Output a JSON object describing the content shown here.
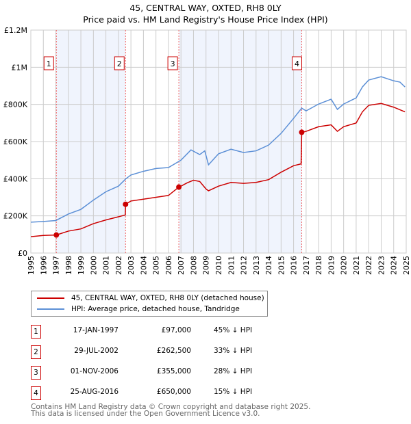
{
  "chart_data": {
    "type": "line",
    "title": "45, CENTRAL WAY, OXTED, RH8 0LY",
    "subtitle": "Price paid vs. HM Land Registry's House Price Index (HPI)",
    "xlim": [
      1995,
      2025
    ],
    "ylim": [
      0,
      1200000
    ],
    "yticks": [
      {
        "v": 0,
        "label": "£0"
      },
      {
        "v": 200000,
        "label": "£200K"
      },
      {
        "v": 400000,
        "label": "£400K"
      },
      {
        "v": 600000,
        "label": "£600K"
      },
      {
        "v": 800000,
        "label": "£800K"
      },
      {
        "v": 1000000,
        "label": "£1M"
      },
      {
        "v": 1200000,
        "label": "£1.2M"
      }
    ],
    "xticks": [
      "1995",
      "1996",
      "1997",
      "1998",
      "1999",
      "2000",
      "2001",
      "2002",
      "2003",
      "2004",
      "2005",
      "2006",
      "2007",
      "2008",
      "2009",
      "2010",
      "2011",
      "2012",
      "2013",
      "2014",
      "2015",
      "2016",
      "2017",
      "2018",
      "2019",
      "2020",
      "2021",
      "2022",
      "2023",
      "2024",
      "2025"
    ],
    "grid": true,
    "series": [
      {
        "name": "45, CENTRAL WAY, OXTED, RH8 0LY (detached house)",
        "color": "#cc0000",
        "x": [
          1995,
          1996,
          1997.04,
          1998,
          1999,
          2000,
          2001,
          2002,
          2002.55,
          2002.57,
          2003,
          2004,
          2005,
          2006,
          2006.83,
          2007,
          2007.5,
          2008,
          2008.5,
          2009,
          2009.2,
          2010,
          2011,
          2012,
          2013,
          2014,
          2015,
          2016,
          2016.6,
          2016.65,
          2017,
          2018,
          2019,
          2019.5,
          2020,
          2021,
          2021.5,
          2022,
          2023,
          2024,
          2024.9
        ],
        "y": [
          88000,
          95000,
          97000,
          118000,
          130000,
          158000,
          178000,
          195000,
          205000,
          262500,
          280000,
          290000,
          300000,
          310000,
          355000,
          360000,
          378000,
          392000,
          385000,
          345000,
          335000,
          360000,
          380000,
          375000,
          380000,
          395000,
          435000,
          470000,
          480000,
          650000,
          655000,
          680000,
          690000,
          655000,
          680000,
          700000,
          760000,
          795000,
          805000,
          785000,
          760000
        ]
      },
      {
        "name": "HPI: Average price, detached house, Tandridge",
        "color": "#5b8fd6",
        "x": [
          1995,
          1996,
          1997,
          1998,
          1999,
          2000,
          2001,
          2002,
          2002.6,
          2003,
          2004,
          2005,
          2006,
          2007,
          2007.8,
          2008.5,
          2008.9,
          2009.2,
          2010,
          2011,
          2012,
          2013,
          2014,
          2015,
          2016,
          2016.65,
          2017,
          2018,
          2019,
          2019.5,
          2020,
          2021,
          2021.5,
          2022,
          2023,
          2024,
          2024.5,
          2024.9
        ],
        "y": [
          166000,
          170000,
          175000,
          210000,
          235000,
          285000,
          330000,
          360000,
          400000,
          420000,
          440000,
          455000,
          460000,
          500000,
          555000,
          530000,
          550000,
          475000,
          534000,
          559000,
          541000,
          550000,
          581000,
          644000,
          725000,
          780000,
          765000,
          802000,
          828000,
          773000,
          802000,
          835000,
          894000,
          931000,
          949000,
          927000,
          920000,
          894000
        ]
      }
    ],
    "sales": [
      {
        "n": "1",
        "x": 2002.0,
        "t": 1997.04,
        "price": 97000
      },
      {
        "n": "2",
        "t": 2002.57,
        "price": 262500
      },
      {
        "n": "3",
        "t": 2006.83,
        "price": 355000
      },
      {
        "n": "4",
        "t": 2016.65,
        "price": 650000
      }
    ],
    "shaded": [
      [
        1997.04,
        2002.57
      ],
      [
        2006.83,
        2016.65
      ]
    ],
    "legend_placement": "below"
  },
  "title": "45, CENTRAL WAY, OXTED, RH8 0LY",
  "subtitle": "Price paid vs. HM Land Registry's House Price Index (HPI)",
  "legend": {
    "red": "45, CENTRAL WAY, OXTED, RH8 0LY (detached house)",
    "blue": "HPI: Average price, detached house, Tandridge"
  },
  "transactions": [
    {
      "n": "1",
      "date": "17-JAN-1997",
      "price": "£97,000",
      "hpi": "45% ↓ HPI"
    },
    {
      "n": "2",
      "date": "29-JUL-2002",
      "price": "£262,500",
      "hpi": "33% ↓ HPI"
    },
    {
      "n": "3",
      "date": "01-NOV-2006",
      "price": "£355,000",
      "hpi": "28% ↓ HPI"
    },
    {
      "n": "4",
      "date": "25-AUG-2016",
      "price": "£650,000",
      "hpi": "15% ↓ HPI"
    }
  ],
  "footer": [
    "Contains HM Land Registry data © Crown copyright and database right 2025.",
    "This data is licensed under the Open Government Licence v3.0."
  ]
}
